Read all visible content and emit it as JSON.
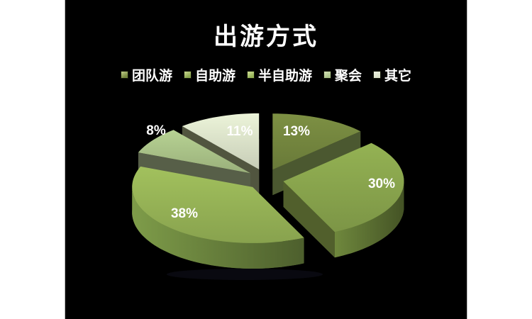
{
  "page": {
    "background": "#ffffff"
  },
  "slide": {
    "background": "#000000"
  },
  "chart_data": {
    "type": "pie",
    "title": "出游方式",
    "style": "3d-exploded",
    "legend_position": "top",
    "background": "#000000",
    "title_color": "#ffffff",
    "label_color": "#ffffff",
    "start_angle_deg": 0,
    "direction": "clockwise",
    "series": [
      {
        "name": "团队游",
        "value": 13,
        "label": "13%",
        "colors": {
          "top": "#75873f",
          "side": "#4f5d2a",
          "radial": "#4b5830",
          "legend_light": "#c2cf8a"
        }
      },
      {
        "name": "自助游",
        "value": 30,
        "label": "30%",
        "colors": {
          "top": "#8aa64e",
          "side": "#5e7334",
          "radial": "#515f2c",
          "legend_light": "#ccd992"
        }
      },
      {
        "name": "半自助游",
        "value": 38,
        "label": "38%",
        "colors": {
          "top": "#97b457",
          "side": "#6b843e",
          "radial": "#5d6f36",
          "legend_light": "#d2e098"
        }
      },
      {
        "name": "聚会",
        "value": 8,
        "label": "8%",
        "colors": {
          "top": "#abc489",
          "side": "#6f7f55",
          "radial": "#575f48",
          "legend_light": "#d7e2b8"
        }
      },
      {
        "name": "其它",
        "value": 11,
        "label": "11%",
        "colors": {
          "top": "#dde4cb",
          "side": "#8b9179",
          "radial": "#51553f",
          "legend_light": "#eef1e4"
        }
      }
    ]
  }
}
